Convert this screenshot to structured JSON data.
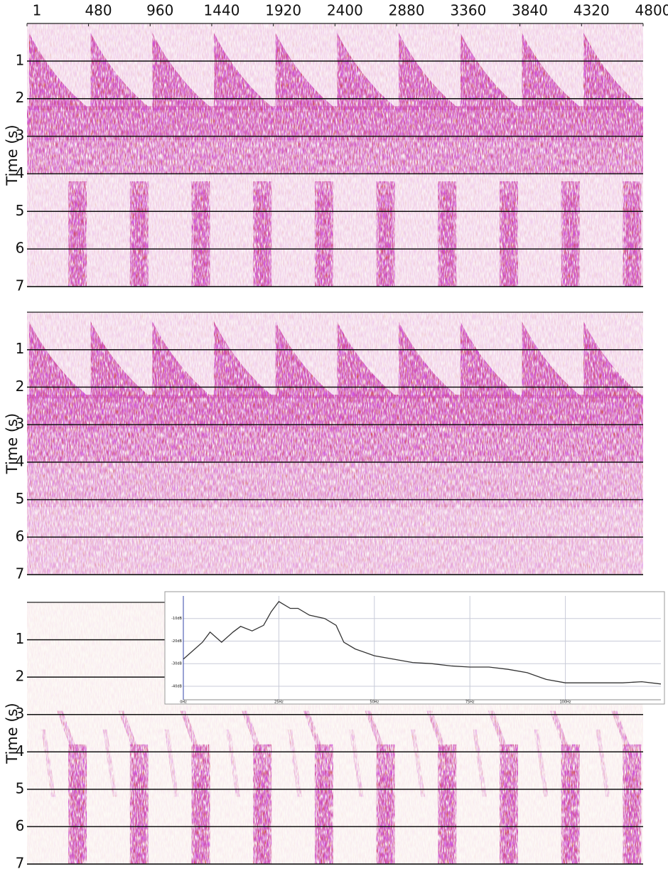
{
  "chart_data": [
    {
      "type": "seismic",
      "xlim": [
        1,
        4800
      ],
      "xticks": [
        1,
        480,
        960,
        1440,
        1920,
        2400,
        2880,
        3360,
        3840,
        4320,
        4800
      ],
      "ylim": [
        0,
        7
      ],
      "yticks": [
        1,
        2,
        3,
        4,
        5,
        6,
        7
      ],
      "y_label": "Time (s)"
    },
    {
      "type": "seismic",
      "ylim": [
        0,
        7
      ],
      "yticks": [
        1,
        2,
        3,
        4,
        5,
        6,
        7
      ],
      "y_label": "Time (s)"
    },
    {
      "type": "seismic",
      "ylim": [
        0,
        7
      ],
      "yticks": [
        1,
        2,
        3,
        4,
        5,
        6,
        7
      ],
      "y_label": "Time (s)"
    },
    {
      "type": "line",
      "color": "#333333",
      "grid": true,
      "x": [
        0,
        5,
        7,
        10,
        13,
        15,
        18,
        21,
        23,
        25,
        28,
        30,
        33,
        37,
        40,
        42,
        45,
        50,
        55,
        60,
        65,
        70,
        75,
        80,
        85,
        90,
        95,
        100,
        105,
        110,
        115,
        120,
        125
      ],
      "values": [
        -28,
        -20.5,
        -16,
        -20.5,
        -16,
        -13.5,
        -15.5,
        -13,
        -7,
        -2.5,
        -5.5,
        -5.5,
        -8.5,
        -10,
        -13,
        -20.5,
        -23.5,
        -26.5,
        -28,
        -29.5,
        -30,
        -31,
        -31.5,
        -31.5,
        -32.5,
        -34,
        -37,
        -38.5,
        -38.5,
        -38.5,
        -38.5,
        -38,
        -39
      ],
      "xlim": [
        0,
        125
      ],
      "xticks": [
        {
          "value": 0,
          "label": "0Hz"
        },
        {
          "value": 25,
          "label": "25Hz"
        },
        {
          "value": 50,
          "label": "50Hz"
        },
        {
          "value": 75,
          "label": "75Hz"
        },
        {
          "value": 100,
          "label": "100Hz"
        }
      ],
      "ylim": [
        -46,
        0
      ],
      "yticks": [
        {
          "value": -10,
          "label": "-10dB"
        },
        {
          "value": -20,
          "label": "-20dB"
        },
        {
          "value": -30,
          "label": "-30dB"
        },
        {
          "value": -40,
          "label": "-40dB"
        }
      ]
    }
  ]
}
